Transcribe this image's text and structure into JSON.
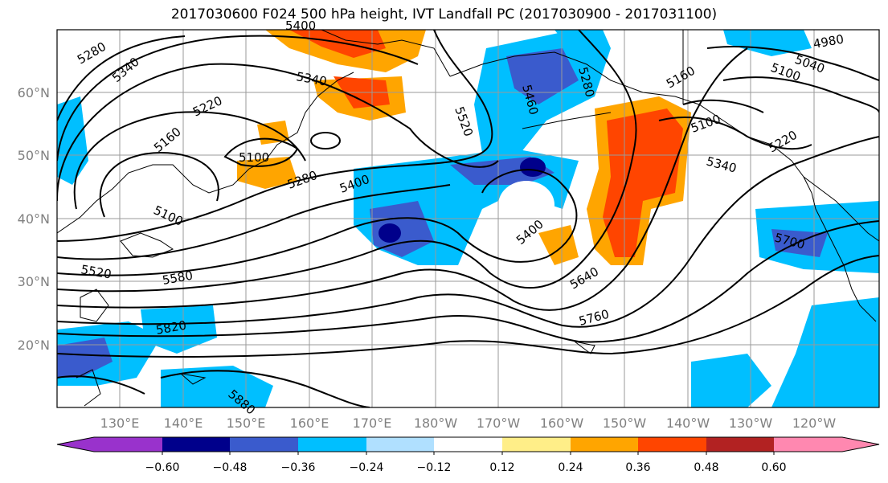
{
  "title": "2017030600 F024 500 hPa height, IVT Landfall PC (2017030900 - 2017031100)",
  "map": {
    "lon_labels": [
      "130°E",
      "140°E",
      "150°E",
      "160°E",
      "170°E",
      "180°W",
      "170°W",
      "160°W",
      "150°W",
      "140°W",
      "130°W",
      "120°W"
    ],
    "lat_labels": [
      "60°N",
      "50°N",
      "40°N",
      "30°N",
      "20°N"
    ],
    "contour_labels": [
      "5280",
      "5340",
      "5340",
      "5220",
      "5160",
      "5100",
      "5100",
      "5280",
      "5400",
      "5520",
      "5580",
      "5820",
      "5880",
      "5400",
      "5640",
      "5760",
      "5700",
      "5160",
      "5100",
      "5340",
      "5220",
      "5100",
      "5040",
      "4980",
      "5460",
      "5280",
      "5400",
      "5520"
    ]
  },
  "colorbar": {
    "colors": [
      "#9932cc",
      "#00008b",
      "#3a5bcd",
      "#00bfff",
      "#b0e0ff",
      "#ffffff",
      "#ffee88",
      "#ffa500",
      "#ff4500",
      "#b22222",
      "#ff88b0"
    ],
    "tick_labels": [
      "−0.60",
      "−0.48",
      "−0.36",
      "−0.24",
      "−0.12",
      "0.12",
      "0.24",
      "0.36",
      "0.48",
      "0.60"
    ]
  }
}
